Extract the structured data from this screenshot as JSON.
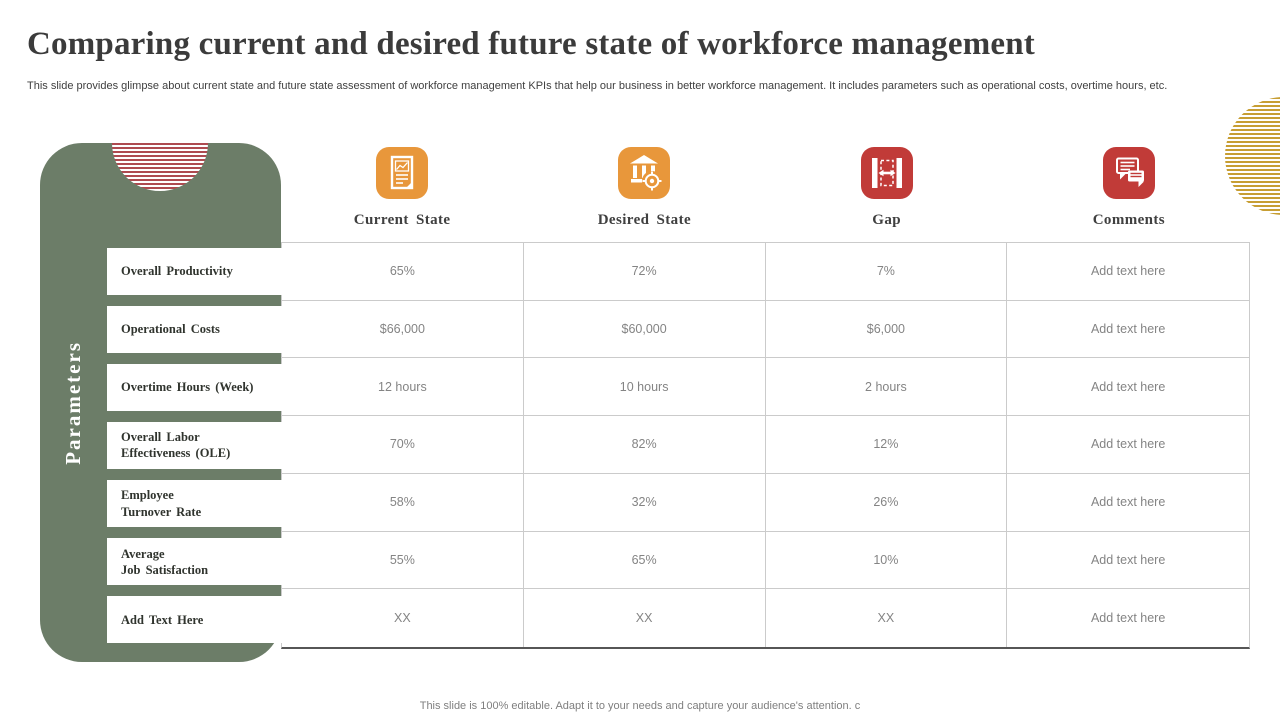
{
  "slide": {
    "title": "Comparing current and desired future state of workforce management",
    "description": "This slide provides glimpse about current state and future state assessment of workforce management KPIs that help our business in better workforce management. It includes parameters such as operational costs, overtime hours, etc.",
    "footer": "This slide is 100% editable. Adapt it to your needs and capture your audience's attention. c"
  },
  "sidebar": {
    "label": "Parameters"
  },
  "columns": [
    {
      "label": "Current State",
      "icon": "document-chart-icon"
    },
    {
      "label": "Desired State",
      "icon": "bank-target-icon"
    },
    {
      "label": "Gap",
      "icon": "gap-arrows-icon"
    },
    {
      "label": "Comments",
      "icon": "speech-bubbles-icon"
    }
  ],
  "table": {
    "rows": [
      {
        "parameter": "Overall Productivity",
        "current_state": "65%",
        "desired_state": "72%",
        "gap": "7%",
        "comments": "Add text here"
      },
      {
        "parameter": "Operational Costs",
        "current_state": "$66,000",
        "desired_state": "$60,000",
        "gap": "$6,000",
        "comments": "Add text here"
      },
      {
        "parameter": "Overtime Hours (Week)",
        "current_state": "12 hours",
        "desired_state": "10 hours",
        "gap": "2 hours",
        "comments": "Add text here"
      },
      {
        "parameter": "Overall Labor\nEffectiveness (OLE)",
        "current_state": "70%",
        "desired_state": "82%",
        "gap": "12%",
        "comments": "Add text here"
      },
      {
        "parameter": "Employee\nTurnover Rate",
        "current_state": "58%",
        "desired_state": "32%",
        "gap": "26%",
        "comments": "Add text here"
      },
      {
        "parameter": "Average\nJob Satisfaction",
        "current_state": "55%",
        "desired_state": "65%",
        "gap": "10%",
        "comments": "Add text here"
      },
      {
        "parameter": "Add Text Here",
        "current_state": "XX",
        "desired_state": "XX",
        "gap": "XX",
        "comments": "Add text here"
      }
    ]
  },
  "colors": {
    "accent_orange": "#E8973B",
    "accent_red": "#C13B38",
    "panel_green": "#6C7D68",
    "stripe_red": "#AE4A50",
    "stripe_gold": "#C79E33",
    "grid_line": "#CBCBCB"
  }
}
